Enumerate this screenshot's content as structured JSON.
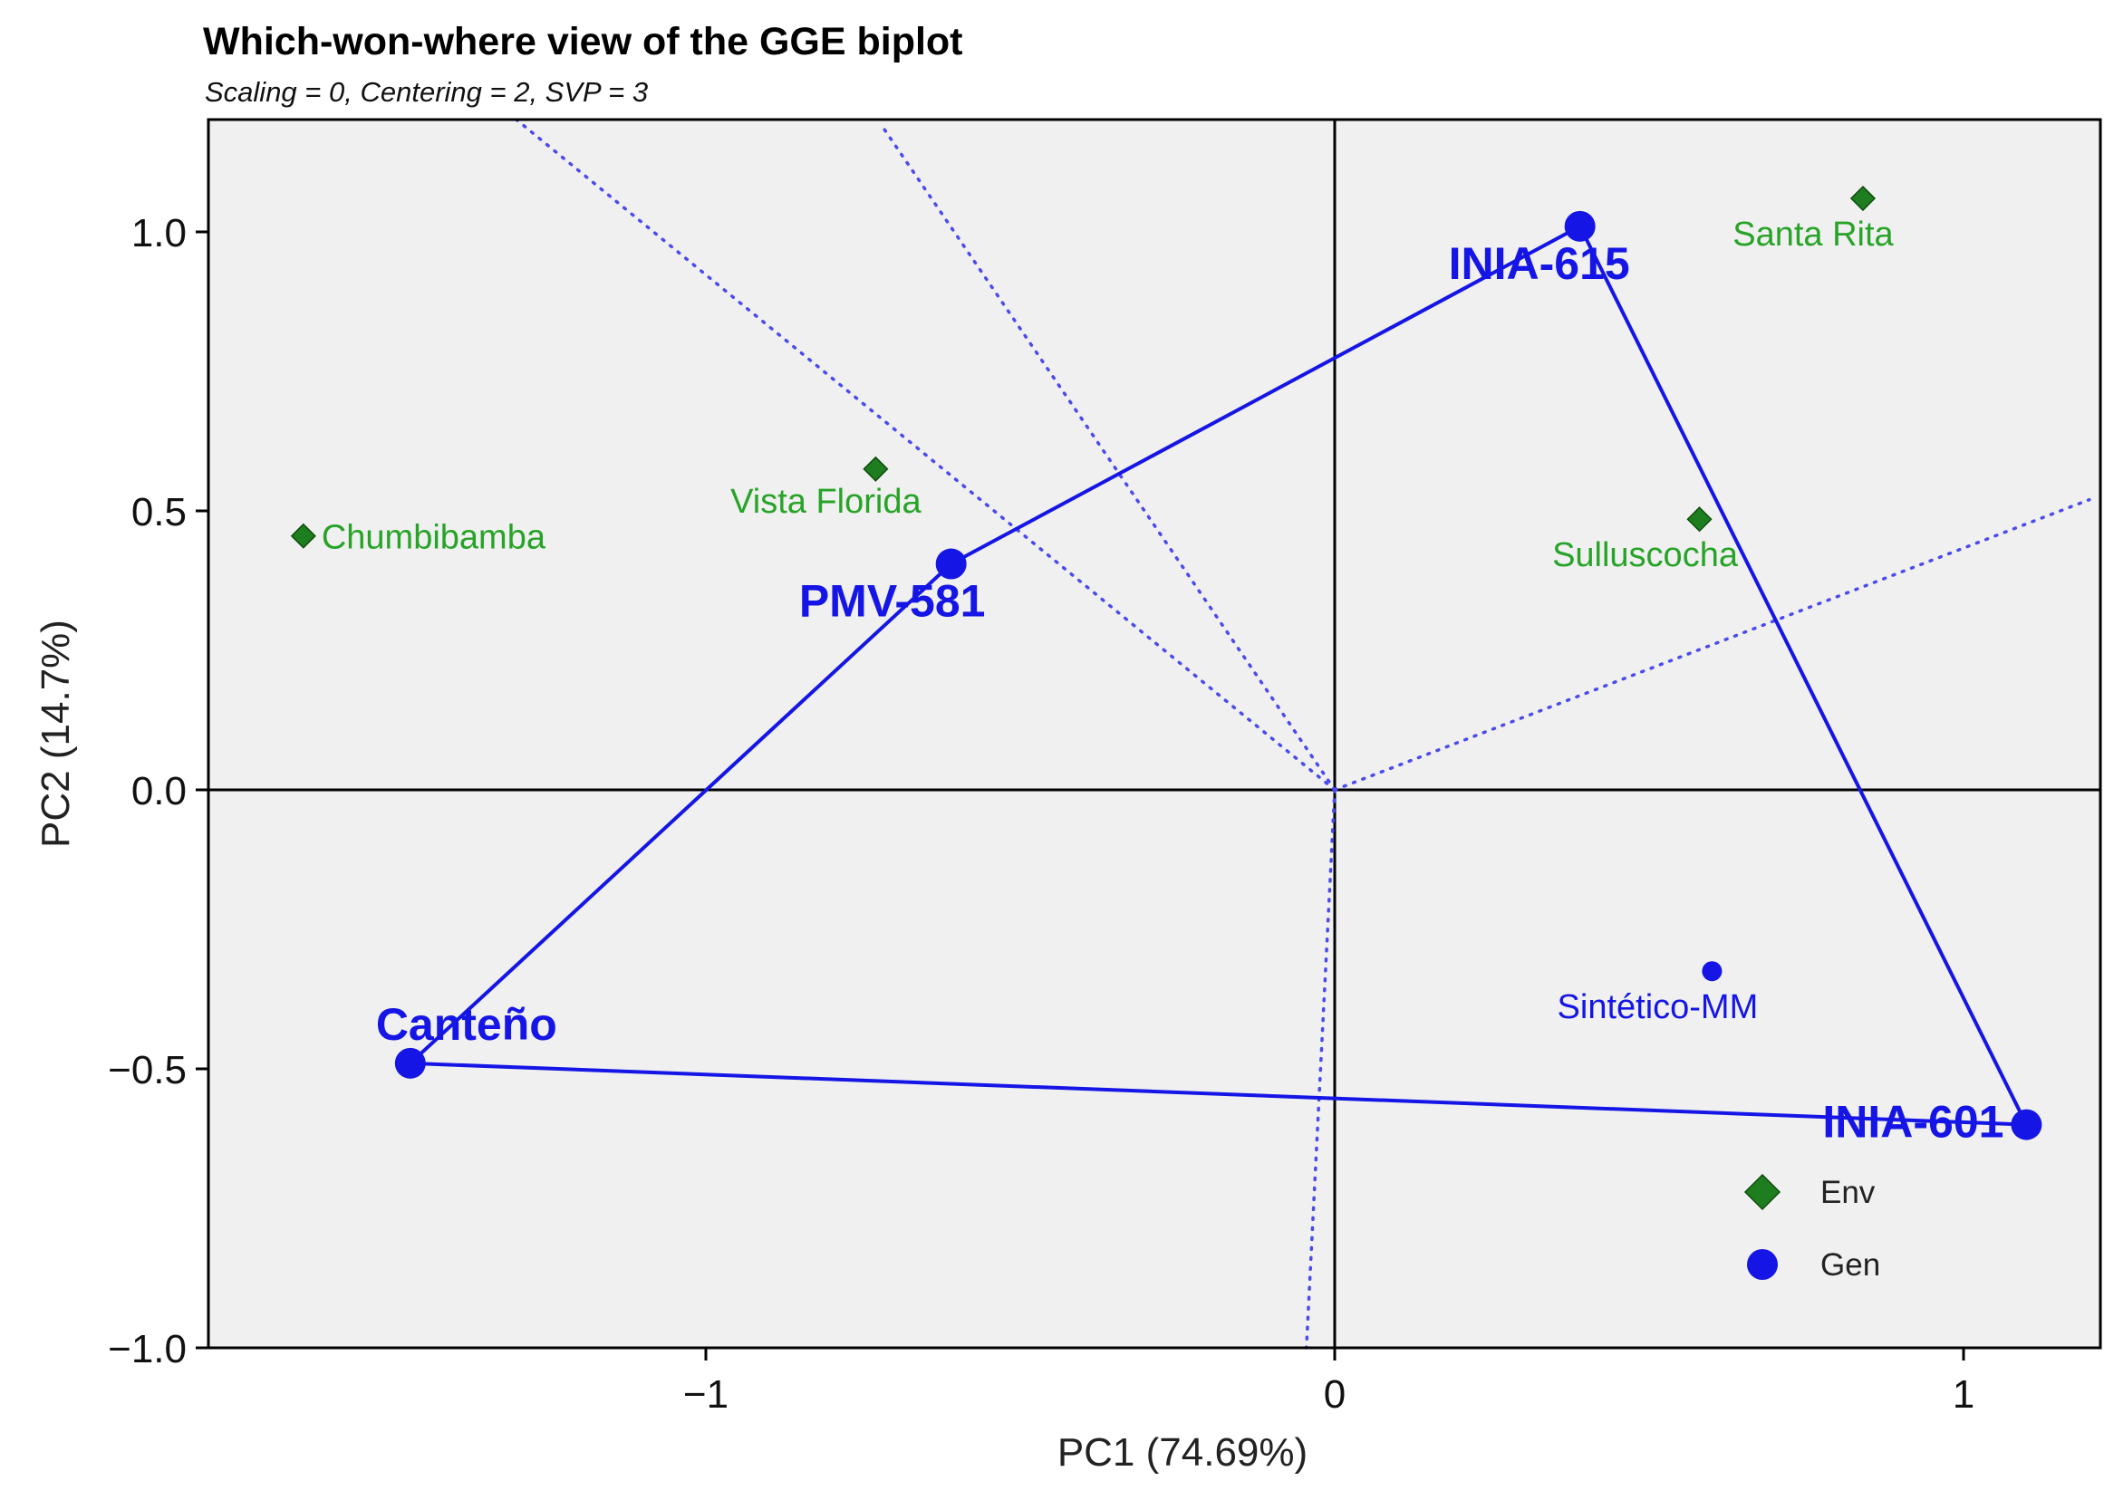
{
  "chart_data": {
    "type": "scatter",
    "title": "Which-won-where view of the GGE biplot",
    "subtitle": "Scaling = 0, Centering = 2, SVP = 3",
    "xlabel": "PC1 (74.69%)",
    "ylabel": "PC2 (14.7%)",
    "xlim": [
      -1.8,
      1.2
    ],
    "ylim": [
      -1.0,
      1.2
    ],
    "x_ticks": [
      {
        "value": -1,
        "label": "−1"
      },
      {
        "value": 0,
        "label": "0"
      },
      {
        "value": 1,
        "label": "1"
      }
    ],
    "y_ticks": [
      {
        "value": 1.0,
        "label": "1.0"
      },
      {
        "value": 0.5,
        "label": "0.5"
      },
      {
        "value": 0.0,
        "label": "0.0"
      },
      {
        "value": -0.5,
        "label": "−0.5"
      },
      {
        "value": -1.0,
        "label": "−1.0"
      }
    ],
    "grid": false,
    "legend_position": "bottom-right",
    "legend": [
      {
        "name": "Env",
        "marker": "diamond",
        "color": "#1e7d1e"
      },
      {
        "name": "Gen",
        "marker": "circle",
        "color": "#1515e6"
      }
    ],
    "colors": {
      "env": "#1e7d1e",
      "env_label": "#27a327",
      "gen": "#1515e6",
      "panel": "#f0f0f0"
    },
    "environments": [
      {
        "name": "Chumbibamba",
        "x": -1.64,
        "y": 0.455
      },
      {
        "name": "Vista Florida",
        "x": -0.73,
        "y": 0.575
      },
      {
        "name": "Santa Rita",
        "x": 0.84,
        "y": 1.06
      },
      {
        "name": "Sulluscocha",
        "x": 0.58,
        "y": 0.485
      }
    ],
    "genotypes": [
      {
        "name": "INIA-615",
        "x": 0.39,
        "y": 1.01,
        "vertex": true
      },
      {
        "name": "PMV-581",
        "x": -0.61,
        "y": 0.405,
        "vertex": true
      },
      {
        "name": "Canteño",
        "x": -1.47,
        "y": -0.49,
        "vertex": true
      },
      {
        "name": "INIA-601",
        "x": 1.1,
        "y": -0.6,
        "vertex": true
      },
      {
        "name": "Sintético-MM",
        "x": 0.6,
        "y": -0.325,
        "vertex": false
      }
    ],
    "polygon_order": [
      "INIA-615",
      "PMV-581",
      "Canteño",
      "INIA-601"
    ],
    "sector_rays": [
      {
        "to_x": -1.3,
        "to_y": 1.2
      },
      {
        "to_x": -0.72,
        "to_y": 1.19
      },
      {
        "to_x": 1.2,
        "to_y": 0.52
      },
      {
        "to_x": -0.045,
        "to_y": -1.0
      }
    ]
  }
}
